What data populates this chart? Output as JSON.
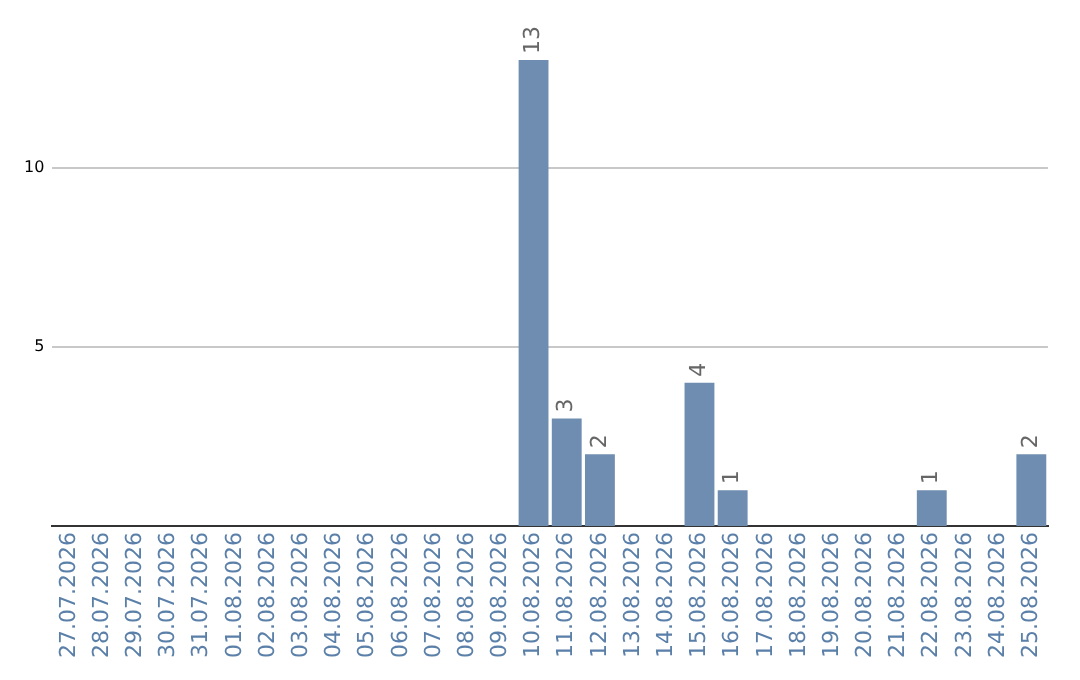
{
  "chart_data": {
    "type": "bar",
    "categories": [
      "27.07.2026",
      "28.07.2026",
      "29.07.2026",
      "30.07.2026",
      "31.07.2026",
      "01.08.2026",
      "02.08.2026",
      "03.08.2026",
      "04.08.2026",
      "05.08.2026",
      "06.08.2026",
      "07.08.2026",
      "08.08.2026",
      "09.08.2026",
      "10.08.2026",
      "11.08.2026",
      "12.08.2026",
      "13.08.2026",
      "14.08.2026",
      "15.08.2026",
      "16.08.2026",
      "17.08.2026",
      "18.08.2026",
      "19.08.2026",
      "20.08.2026",
      "21.08.2026",
      "22.08.2026",
      "23.08.2026",
      "24.08.2026",
      "25.08.2026"
    ],
    "values": [
      0,
      0,
      0,
      0,
      0,
      0,
      0,
      0,
      0,
      0,
      0,
      0,
      0,
      0,
      13,
      3,
      2,
      0,
      0,
      4,
      1,
      0,
      0,
      0,
      0,
      0,
      1,
      0,
      0,
      2
    ],
    "value_labels": [
      null,
      null,
      null,
      null,
      null,
      null,
      null,
      null,
      null,
      null,
      null,
      null,
      null,
      null,
      "13",
      "3",
      "2",
      null,
      null,
      "4",
      "1",
      null,
      null,
      null,
      null,
      null,
      "1",
      null,
      null,
      "2"
    ],
    "color": "#6f8db0",
    "ylim": [
      0,
      13
    ],
    "yticks": [
      5,
      10
    ],
    "grid": "y"
  }
}
